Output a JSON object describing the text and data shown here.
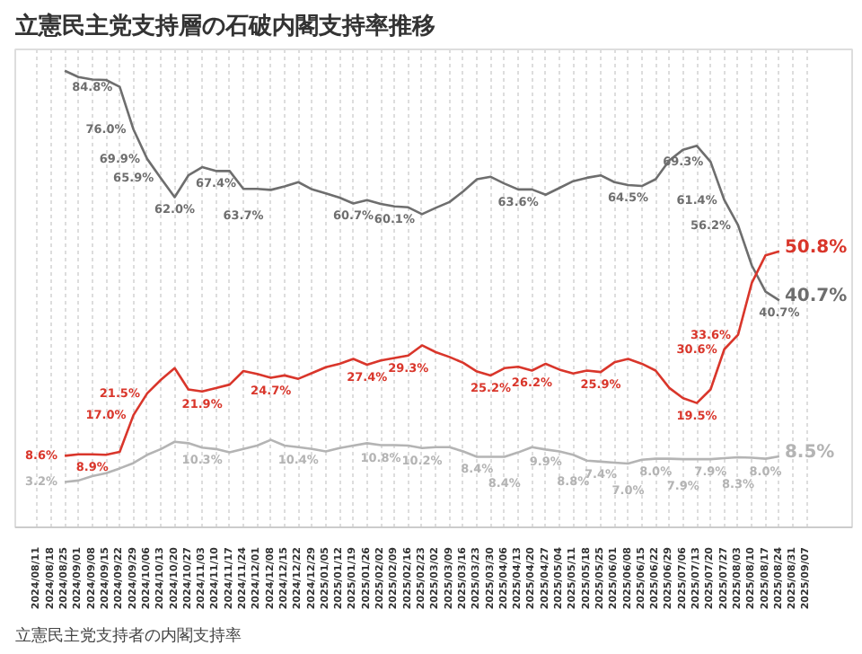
{
  "chart_data": {
    "type": "line",
    "title": "立憲民主党支持層の石破内閣支持率推移",
    "categories": [
      "2024/08/11",
      "2024/08/18",
      "2024/08/25",
      "2024/09/01",
      "2024/09/08",
      "2024/09/15",
      "2024/09/22",
      "2024/09/29",
      "2024/10/06",
      "2024/10/13",
      "2024/10/20",
      "2024/10/27",
      "2024/11/03",
      "2024/11/10",
      "2024/11/17",
      "2024/11/24",
      "2024/12/01",
      "2024/12/08",
      "2024/12/15",
      "2024/12/22",
      "2024/12/29",
      "2025/01/05",
      "2025/01/12",
      "2025/01/19",
      "2025/01/26",
      "2025/02/02",
      "2025/02/09",
      "2025/02/16",
      "2025/02/23",
      "2025/03/02",
      "2025/03/09",
      "2025/03/16",
      "2025/03/23",
      "2025/03/30",
      "2025/04/06",
      "2025/04/13",
      "2025/04/20",
      "2025/04/27",
      "2025/05/04",
      "2025/05/11",
      "2025/05/18",
      "2025/05/25",
      "2025/06/01",
      "2025/06/08",
      "2025/06/15",
      "2025/06/22",
      "2025/06/29",
      "2025/07/06",
      "2025/07/13",
      "2025/07/20",
      "2025/07/27",
      "2025/08/03",
      "2025/08/10",
      "2025/08/17",
      "2025/08/24",
      "2025/08/31",
      "2025/09/07"
    ],
    "series": [
      {
        "color": "#6e6e6e",
        "values": [
          null,
          null,
          88.1,
          86.8,
          86.3,
          86.2,
          84.8,
          76.0,
          69.9,
          65.9,
          62.0,
          66.5,
          68.2,
          67.4,
          67.4,
          63.7,
          63.7,
          63.5,
          64.2,
          65.1,
          63.6,
          62.8,
          61.9,
          60.7,
          61.4,
          60.6,
          60.1,
          59.9,
          58.5,
          59.8,
          61.0,
          63.2,
          65.7,
          66.2,
          64.8,
          63.6,
          63.6,
          62.5,
          63.9,
          65.3,
          66.0,
          66.5,
          65.1,
          64.5,
          64.3,
          65.7,
          69.6,
          71.8,
          72.6,
          69.3,
          61.4,
          56.2,
          47.9,
          42.5,
          40.7,
          null,
          null
        ],
        "value_labels": [
          null,
          null,
          null,
          null,
          null,
          null,
          "84.8%",
          "76.0%",
          "69.9%",
          "65.9%",
          "62.0%",
          null,
          null,
          "67.4%",
          null,
          "63.7%",
          null,
          null,
          null,
          null,
          null,
          null,
          null,
          "60.7%",
          null,
          null,
          "60.1%",
          null,
          null,
          null,
          null,
          null,
          null,
          null,
          null,
          "63.6%",
          null,
          null,
          null,
          null,
          null,
          null,
          null,
          "64.5%",
          null,
          null,
          null,
          null,
          null,
          "69.3%",
          "61.4%",
          "56.2%",
          null,
          null,
          "40.7%",
          null,
          null
        ]
      },
      {
        "color": "#d9362b",
        "values": [
          null,
          null,
          8.6,
          8.9,
          8.9,
          8.8,
          9.4,
          17.0,
          21.5,
          24.3,
          26.7,
          22.3,
          21.9,
          22.6,
          23.3,
          26.1,
          25.5,
          24.7,
          25.2,
          24.5,
          25.7,
          26.9,
          27.6,
          28.6,
          27.4,
          28.3,
          28.8,
          29.3,
          31.4,
          30.0,
          29.0,
          27.8,
          26.0,
          25.2,
          26.7,
          27.0,
          26.2,
          27.6,
          26.4,
          25.6,
          26.2,
          25.9,
          27.9,
          28.6,
          27.6,
          26.2,
          22.6,
          20.5,
          19.5,
          22.3,
          30.6,
          33.6,
          44.3,
          50.0,
          50.8,
          null,
          null
        ],
        "value_labels": [
          null,
          null,
          "8.6%",
          null,
          "8.9%",
          null,
          null,
          "17.0%",
          "21.5%",
          null,
          null,
          null,
          "21.9%",
          null,
          null,
          null,
          null,
          "24.7%",
          null,
          null,
          null,
          null,
          null,
          null,
          "27.4%",
          null,
          null,
          "29.3%",
          null,
          null,
          null,
          null,
          null,
          "25.2%",
          null,
          null,
          "26.2%",
          null,
          null,
          null,
          null,
          "25.9%",
          null,
          null,
          null,
          null,
          null,
          null,
          "19.5%",
          null,
          "30.6%",
          "33.6%",
          null,
          null,
          null,
          null,
          null
        ]
      },
      {
        "color": "#b4b4b4",
        "values": [
          null,
          null,
          3.2,
          3.5,
          4.4,
          5.0,
          6.0,
          7.1,
          8.8,
          10.0,
          11.5,
          11.2,
          10.3,
          10.0,
          9.3,
          10.0,
          10.7,
          11.9,
          10.7,
          10.4,
          10.0,
          9.5,
          10.2,
          10.7,
          11.2,
          10.8,
          10.8,
          10.7,
          10.2,
          10.4,
          10.4,
          9.5,
          8.4,
          8.4,
          8.4,
          9.3,
          10.4,
          9.9,
          9.5,
          8.8,
          7.6,
          7.4,
          7.2,
          7.0,
          7.8,
          8.0,
          8.0,
          7.9,
          7.9,
          7.9,
          8.1,
          8.3,
          8.2,
          8.0,
          8.5,
          null,
          null
        ],
        "value_labels": [
          null,
          null,
          "3.2%",
          null,
          null,
          null,
          null,
          null,
          null,
          null,
          null,
          null,
          "10.3%",
          null,
          null,
          null,
          null,
          null,
          null,
          "10.4%",
          null,
          null,
          null,
          null,
          null,
          "10.8%",
          null,
          null,
          "10.2%",
          null,
          null,
          null,
          "8.4%",
          null,
          "8.4%",
          null,
          null,
          "9.9%",
          null,
          "8.8%",
          null,
          "7.4%",
          null,
          "7.0%",
          null,
          "8.0%",
          null,
          "7.9%",
          null,
          "7.9%",
          null,
          "8.3%",
          null,
          "8.0%",
          null,
          null,
          null
        ]
      }
    ],
    "annotations": [
      "立憲民主党支持者の内閣支持率",
      {
        "text": "50.8%",
        "x": "2025/08/24",
        "y": 50.8
      },
      {
        "text": "40.7%",
        "x": "2025/08/24",
        "y": 40.7
      },
      {
        "text": "8.5%",
        "x": "2025/08/24",
        "y": 8.5
      }
    ],
    "grid": "x"
  }
}
